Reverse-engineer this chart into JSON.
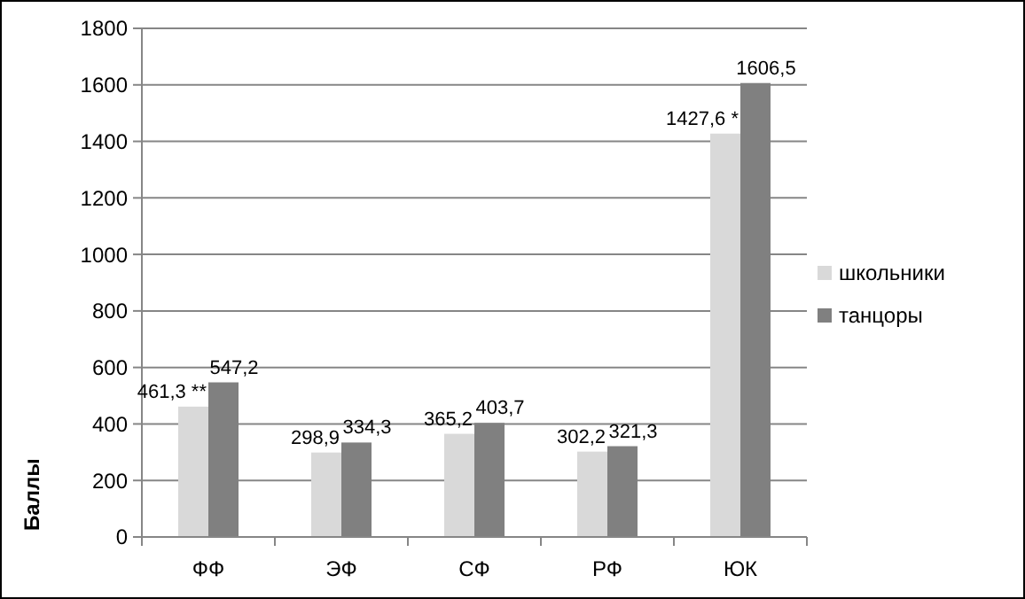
{
  "chart_data": {
    "type": "bar",
    "ylabel": "Баллы",
    "categories": [
      "ФФ",
      "ЭФ",
      "СФ",
      "РФ",
      "ЮК"
    ],
    "series": [
      {
        "name": "школьники",
        "color": "#d9d9d9",
        "values": [
          461.3,
          298.9,
          365.2,
          302.2,
          1427.6
        ],
        "value_labels": [
          "461,3 **",
          "298,9",
          "365,2",
          "302,2",
          "1427,6 *"
        ]
      },
      {
        "name": "танцоры",
        "color": "#808080",
        "values": [
          547.2,
          334.3,
          403.7,
          321.3,
          1606.5
        ],
        "value_labels": [
          "547,2",
          "334,3",
          "403,7",
          "321,3",
          "1606,5"
        ]
      }
    ],
    "ylim": [
      0,
      1800
    ],
    "yticks": [
      0,
      200,
      400,
      600,
      800,
      1000,
      1200,
      1400,
      1600,
      1800
    ],
    "grid": "y",
    "legend": "right"
  }
}
